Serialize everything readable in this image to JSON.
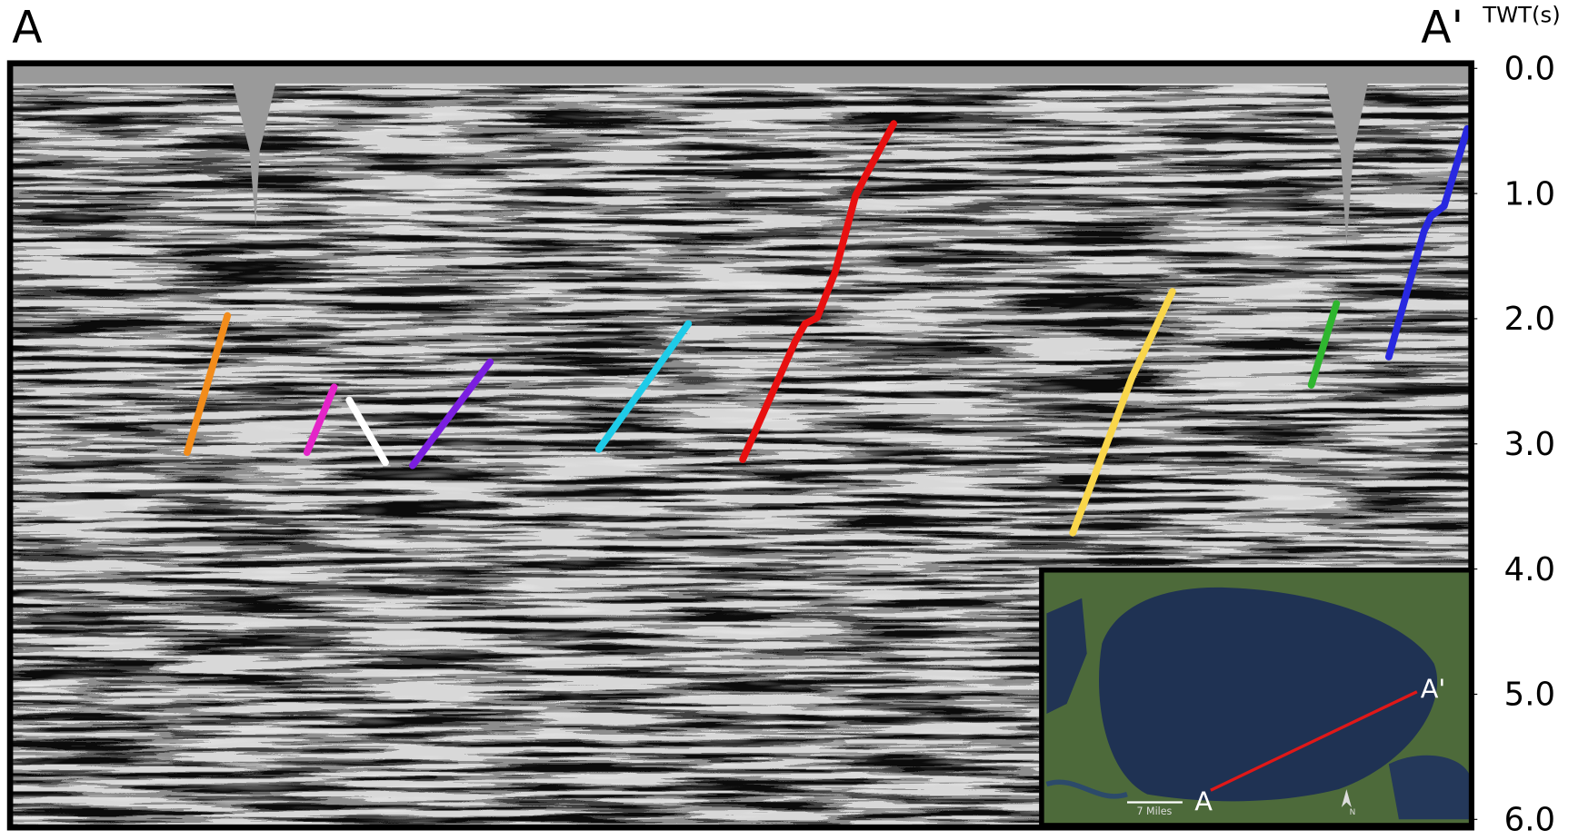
{
  "labels": {
    "left": "A",
    "right": "A'"
  },
  "axis": {
    "title": "TWT(s)",
    "ylim": [
      0,
      6
    ],
    "yticks": [
      {
        "value": 0,
        "label": "0.0"
      },
      {
        "value": 1,
        "label": "1.0"
      },
      {
        "value": 2,
        "label": "2.0"
      },
      {
        "value": 3,
        "label": "3.0"
      },
      {
        "value": 4,
        "label": "4.0"
      },
      {
        "value": 5,
        "label": "5.0"
      },
      {
        "value": 6,
        "label": "6.0"
      }
    ]
  },
  "inset": {
    "start_label": "A",
    "end_label": "A'",
    "scale_label": "7 Miles",
    "north_label": "N"
  }
}
